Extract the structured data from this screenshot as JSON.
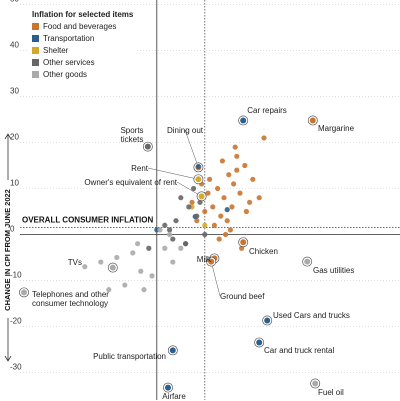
{
  "chart_data": {
    "type": "scatter",
    "legend_title": "Inflation for selected items",
    "y_label": "CHANGE IN CPI FROM JUNE 2022",
    "ylim": [
      -36,
      51
    ],
    "yticks": [
      -30,
      -20,
      -10,
      0,
      10,
      20,
      30,
      40,
      50
    ],
    "xlim": [
      -9.8,
      15.2
    ],
    "grid": true,
    "reference": {
      "label": "OVERALL CONSUMER INFLATION",
      "x": 3.0,
      "y": 1.5
    },
    "series": [
      {
        "name": "Food and beverages",
        "color": "#c8752f",
        "x": [
          9.75,
          2.6,
          5.4,
          3.6,
          3.4,
          5,
          5.5,
          6,
          4.5,
          3.8,
          4.2,
          4.8,
          5.2,
          5.8,
          3.5,
          3.0,
          2.8,
          4.0,
          4.4,
          5.0,
          3.6,
          4.6,
          6.4,
          5.6,
          4.9,
          3.2,
          4.1,
          2.5,
          3.9,
          4.3,
          6.7,
          5.3,
          2.2,
          3.3,
          4.7
        ],
        "y": [
          24.8,
          14.6,
          -1.7,
          -5.2,
          -5.9,
          17,
          15,
          12,
          13,
          10,
          8,
          11,
          9,
          7,
          6,
          5,
          11,
          4,
          3,
          14,
          2,
          1,
          8,
          5,
          19,
          9,
          16,
          3,
          -1,
          0,
          21,
          -3,
          7,
          12,
          6
        ],
        "labels": [
          "Margarine",
          "Dining out",
          "Chicken",
          "Milk",
          "Ground beef",
          null,
          null,
          null,
          null,
          null,
          null,
          null,
          null,
          null,
          null,
          null,
          null,
          null,
          null,
          null,
          null,
          null,
          null,
          null,
          null,
          null,
          null,
          null,
          null,
          null,
          null,
          null,
          null,
          null,
          null
        ]
      },
      {
        "name": "Transportation",
        "color": "#2b5f8e",
        "x": [
          5.4,
          6.9,
          6.4,
          1.0,
          0.7,
          2.6,
          0,
          4.4,
          2.4,
          1.8
        ],
        "y": [
          24.8,
          -18.7,
          -23.5,
          -25.2,
          -33.3,
          14.8,
          1,
          5.4,
          3.9,
          -2
        ],
        "labels": [
          "Car repairs",
          "Used Cars and trucks",
          "Car and truck rental",
          "Public transportation",
          "Airfare",
          null,
          null,
          null,
          null,
          null
        ]
      },
      {
        "name": "Shelter",
        "color": "#d4a82a",
        "x": [
          2.6,
          2.8,
          3.0,
          2.2
        ],
        "y": [
          12,
          8.3,
          2,
          6
        ],
        "labels": [
          "Rent",
          "Owner's equivalent of rent",
          null,
          null
        ]
      },
      {
        "name": "Other services",
        "color": "#666666",
        "x": [
          -0.56,
          1.5,
          2,
          2.5,
          1.2,
          0.8,
          3,
          1.8,
          2.3,
          0.5,
          1.0,
          2.7,
          -0.5
        ],
        "y": [
          19.1,
          8,
          6,
          4,
          3,
          1,
          0,
          -2,
          10,
          2,
          -1,
          7,
          -3
        ],
        "labels": [
          "Sports tickets",
          null,
          null,
          null,
          null,
          null,
          null,
          null,
          null,
          null,
          null,
          null,
          null
        ]
      },
      {
        "name": "Other goods",
        "color": "#aaaaaa",
        "x": [
          -2.75,
          -8.3,
          9.4,
          9.9,
          -3.5,
          -1.5,
          -1,
          0.5,
          1,
          -2,
          -0.8,
          0.2,
          -3,
          -1.2,
          1.5,
          -0.3,
          0.8,
          -2.5,
          -4.5
        ],
        "y": [
          -7.2,
          -12.6,
          -5.9,
          -32.4,
          -6,
          -4,
          -8,
          -3,
          -6,
          -11,
          -12,
          1,
          -12,
          -2,
          -3,
          -9,
          0,
          -5,
          -7
        ],
        "labels": [
          "TVs",
          "Telephones and other consumer technology",
          "Gas utilities",
          "Fuel oil",
          null,
          null,
          null,
          null,
          null,
          null,
          null,
          null,
          null,
          null,
          null,
          null,
          null,
          null,
          null
        ]
      }
    ]
  }
}
